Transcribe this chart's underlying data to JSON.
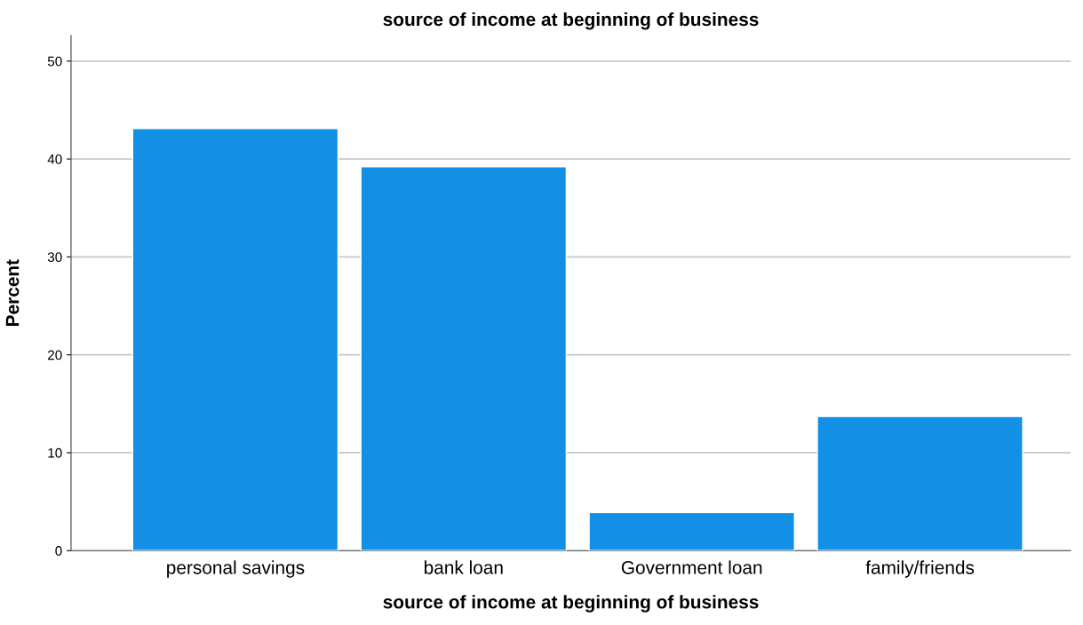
{
  "chart_data": {
    "type": "bar",
    "title": "source of income at beginning of business",
    "xlabel": "source of income at beginning of business",
    "ylabel": "Percent",
    "categories": [
      "personal savings",
      "bank loan",
      "Government loan",
      "family/friends"
    ],
    "values": [
      43.1,
      39.2,
      3.9,
      13.7
    ],
    "color": "#1390e6",
    "ylim": [
      0,
      52.6
    ],
    "yticks": [
      0,
      10,
      20,
      30,
      40,
      50
    ],
    "grid": "y"
  }
}
